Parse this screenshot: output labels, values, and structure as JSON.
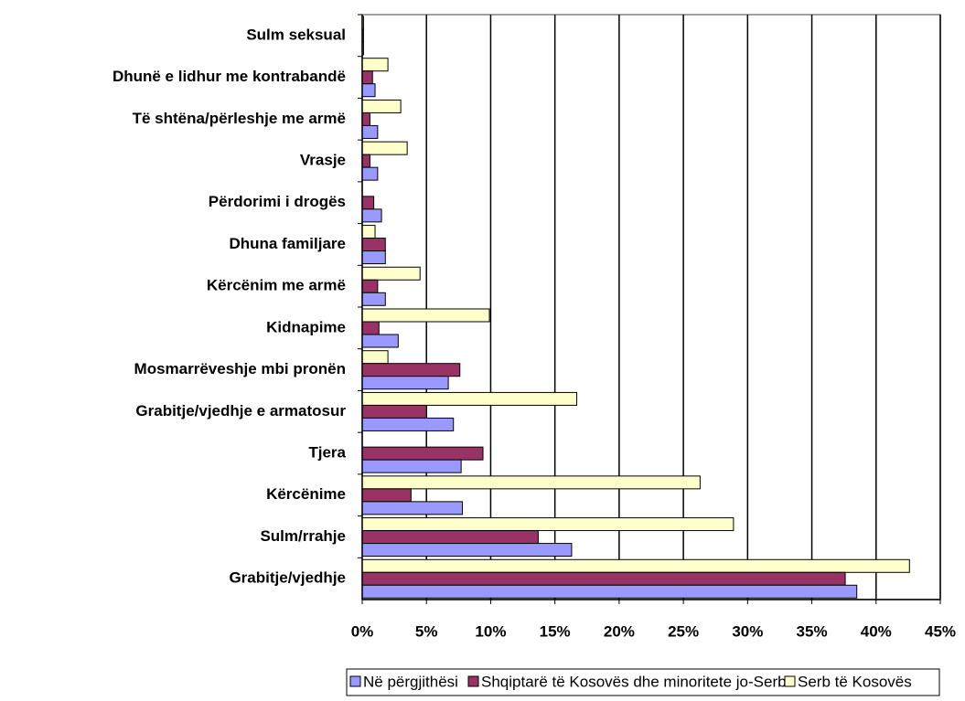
{
  "chart_data": {
    "type": "bar",
    "orientation": "horizontal",
    "categories": [
      "Sulm seksual",
      "Dhunë e lidhur me kontrabandë",
      "Të shtëna/përleshje me armë",
      "Vrasje",
      "Përdorimi i drogës",
      "Dhuna familjare",
      "Kërcënim me armë",
      "Kidnapime",
      "Mosmarrëveshje mbi pronën",
      "Grabitje/vjedhje e armatosur",
      "Tjera",
      "Kërcënime",
      "Sulm/rrahje",
      "Grabitje/vjedhje"
    ],
    "series": [
      {
        "name": "Në përgjithësi",
        "color": "#9999ff",
        "values": [
          0.1,
          1.0,
          1.2,
          1.2,
          1.5,
          1.8,
          1.8,
          2.8,
          6.7,
          7.1,
          7.7,
          7.8,
          16.3,
          38.5
        ]
      },
      {
        "name": "Shqiptarë të Kosovës dhe minoritete jo-Serbe",
        "color": "#993366",
        "values": [
          0.1,
          0.8,
          0.6,
          0.6,
          0.9,
          1.8,
          1.2,
          1.3,
          7.6,
          5.0,
          9.4,
          3.8,
          13.7,
          37.6
        ]
      },
      {
        "name": "Serb të Kosovës",
        "color": "#ffffcc",
        "values": [
          0.1,
          2.0,
          3.0,
          3.5,
          0,
          1.0,
          4.5,
          9.9,
          2.0,
          16.7,
          0,
          26.3,
          28.9,
          42.6
        ]
      }
    ],
    "xlim": [
      0,
      45
    ],
    "xticks": [
      {
        "value": 0,
        "label": "0%"
      },
      {
        "value": 5,
        "label": "5%"
      },
      {
        "value": 10,
        "label": "10%"
      },
      {
        "value": 15,
        "label": "15%"
      },
      {
        "value": 20,
        "label": "20%"
      },
      {
        "value": 25,
        "label": "25%"
      },
      {
        "value": 30,
        "label": "30%"
      },
      {
        "value": 35,
        "label": "35%"
      },
      {
        "value": 40,
        "label": "40%"
      },
      {
        "value": 45,
        "label": "45%"
      }
    ],
    "grid": true,
    "legend": "bottom"
  }
}
